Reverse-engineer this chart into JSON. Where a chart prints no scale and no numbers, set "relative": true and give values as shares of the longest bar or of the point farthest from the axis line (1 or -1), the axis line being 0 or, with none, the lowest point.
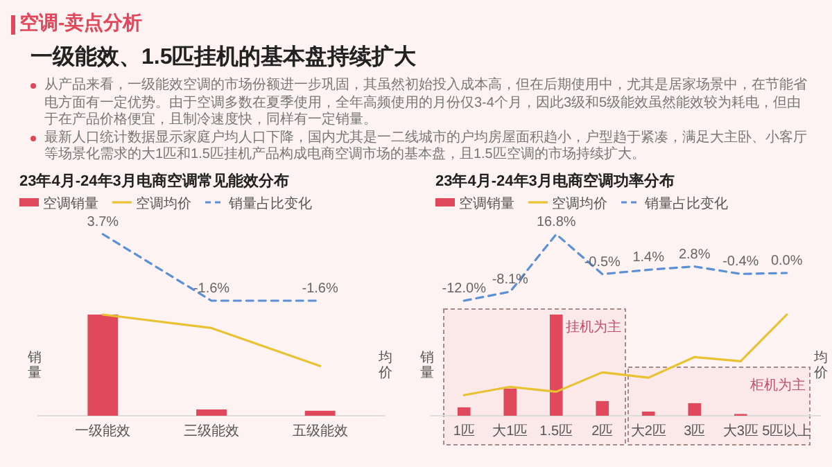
{
  "chart_data": [
    {
      "type": "other",
      "title": "空调-卖点分析",
      "subtitle": "一级能效、1.5匹挂机的基本盘持续扩大",
      "annotations": [
        "从产品来看，一级能效空调的市场份额进一步巩固，其虽然初始投入成本高，但在后期使用中，尤其是居家场景中，在节能省电方面有一定优势。由于空调多数在夏季使用，全年高频使用的月份仅3-4个月，因此3级和5级能效虽然能效较为耗电，但由于在产品价格便宜，且制冷速度快，同样有一定销量。",
        "最新人口统计数据显示家庭户均人口下降，国内尤其是一二线城市的户均房屋面积趋小，户型趋于紧凑，满足大主卧、小客厅等场景化需求的大1匹和1.5匹挂机产品构成电商空调市场的基本盘，且1.5匹空调的市场持续扩大。"
      ]
    },
    {
      "type": "bar",
      "categories": [
        "一级能效",
        "三级能效",
        "五级能效"
      ],
      "relative": true,
      "ylabel": "销量",
      "y2label": "均价",
      "legend": "top left",
      "series": [
        {
          "name": "空调销量",
          "color": "#e0485c",
          "values": [
            1,
            0.062,
            0.049
          ]
        },
        {
          "name": "空调均价",
          "type": "line",
          "color": "#e9c232",
          "values": [
            1,
            0.867,
            0.491
          ]
        }
      ]
    },
    {
      "type": "line",
      "title": "23年4月-24年3月电商空调常见能效分布",
      "categories": [
        "一级能效",
        "三级能效",
        "五级能效"
      ],
      "tick_labels": false,
      "legend": "top",
      "series": [
        {
          "name": "销量占比变化",
          "color": "#5b8fd6",
          "line_style": "dashed",
          "values": [
            3.7,
            -1.6,
            -1.6
          ],
          "value_labels": [
            "3.7%",
            "-1.6%",
            "-1.6%"
          ]
        }
      ]
    },
    {
      "type": "bar",
      "categories": [
        "1匹",
        "大1匹",
        "1.5匹",
        "2匹",
        "大2匹",
        "3匹",
        "大3匹",
        "5匹以上"
      ],
      "relative": true,
      "ylabel": "销量",
      "y2label": "均价",
      "legend": "top left",
      "series": [
        {
          "name": "空调销量",
          "color": "#e0485c",
          "values": [
            0.083,
            0.269,
            1,
            0.145,
            0.041,
            0.124,
            0.017,
            0
          ]
        },
        {
          "name": "空调均价",
          "type": "line",
          "color": "#e9c232",
          "values": [
            0.204,
            0.286,
            0.237,
            0.429,
            0.376,
            0.58,
            0.539,
            1
          ]
        }
      ],
      "bands": [
        {
          "axis": "x",
          "from": "1匹",
          "to": "2匹",
          "label": "挂机为主"
        },
        {
          "axis": "x",
          "from": "大2匹",
          "to": "5匹以上",
          "label": "柜机为主"
        }
      ]
    },
    {
      "type": "line",
      "title": "23年4月-24年3月电商空调功率分布",
      "categories": [
        "1匹",
        "大1匹",
        "1.5匹",
        "2匹",
        "大2匹",
        "3匹",
        "大3匹",
        "5匹以上"
      ],
      "tick_labels": false,
      "legend": "top",
      "series": [
        {
          "name": "销量占比变化",
          "color": "#5b8fd6",
          "line_style": "dashed",
          "values": [
            -12.0,
            -8.1,
            16.8,
            -0.5,
            1.4,
            2.8,
            -0.4,
            0.0
          ],
          "value_labels": [
            "-12.0%",
            "-8.1%",
            "16.8%",
            "-0.5%",
            "1.4%",
            "2.8%",
            "-0.4%",
            "0.0%"
          ]
        }
      ]
    }
  ]
}
